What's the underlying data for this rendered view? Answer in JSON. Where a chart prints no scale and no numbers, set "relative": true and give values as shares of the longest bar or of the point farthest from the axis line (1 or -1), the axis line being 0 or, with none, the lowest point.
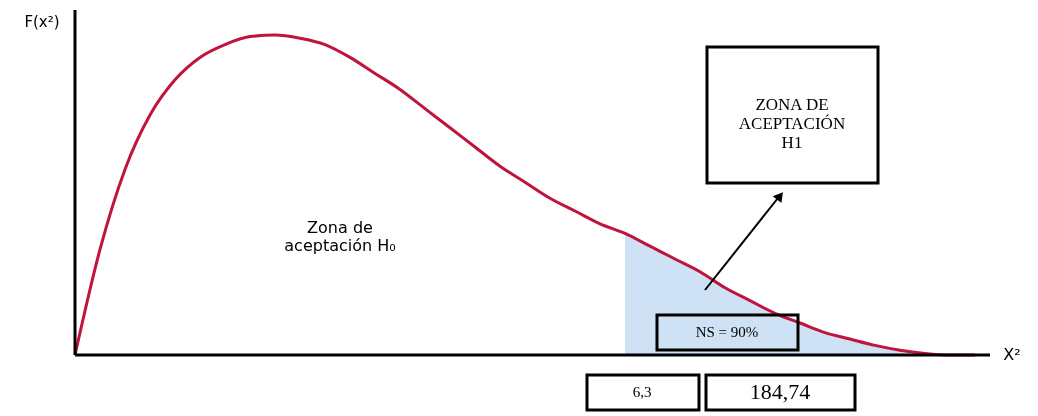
{
  "chart_data": {
    "type": "line",
    "relative": true,
    "ylabel": "F(x²)",
    "xlabel": "X²",
    "categories": [
      null,
      null,
      null,
      null,
      null,
      null,
      null,
      null,
      null,
      null,
      null,
      null,
      null,
      null,
      null,
      null,
      null,
      null,
      null,
      null,
      null,
      null,
      null,
      null,
      null,
      null,
      null,
      null,
      null,
      null,
      null,
      null,
      null,
      null,
      null,
      null,
      null
    ],
    "series": [
      {
        "type": "area",
        "color": "#cfe2f5",
        "values": [
          null,
          null,
          null,
          null,
          null,
          null,
          null,
          null,
          null,
          null,
          null,
          null,
          null,
          null,
          null,
          null,
          null,
          null,
          null,
          null,
          null,
          null,
          0.38,
          0.34,
          0.3,
          0.26,
          0.21,
          0.17,
          0.13,
          0.1,
          0.07,
          0.05,
          0.03,
          0.015,
          0.005,
          0,
          0
        ]
      },
      {
        "color": "#c0143c",
        "values": [
          0,
          0.33,
          0.58,
          0.75,
          0.86,
          0.93,
          0.97,
          0.995,
          1,
          0.99,
          0.97,
          0.93,
          0.88,
          0.83,
          0.77,
          0.71,
          0.65,
          0.59,
          0.54,
          0.49,
          0.45,
          0.41,
          0.38,
          0.34,
          0.3,
          0.26,
          0.21,
          0.17,
          0.13,
          0.1,
          0.07,
          0.05,
          0.03,
          0.015,
          0.005,
          0,
          0
        ]
      }
    ],
    "annotations": [
      "Zona de\naceptación H₀",
      "ZONA DE\nACEPTACIÓN\nH1",
      "NS = 90%",
      "6,3",
      "184,74"
    ]
  }
}
